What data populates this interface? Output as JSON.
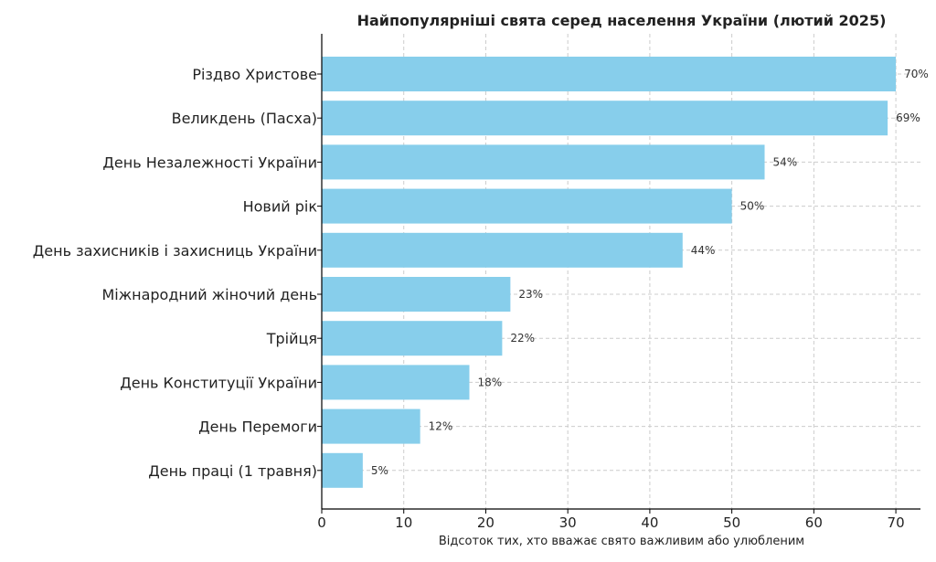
{
  "chart_data": {
    "type": "bar",
    "orientation": "horizontal",
    "title": "Найпопулярніші свята серед населення України (лютий 2025)",
    "xlabel": "Відсоток тих, хто вважає свято важливим або улюбленим",
    "ylabel": "",
    "categories": [
      "Різдво Христове",
      "Великдень (Пасха)",
      "День Незалежності України",
      "Новий рік",
      "День захисників і захисниць України",
      "Міжнародний жіночий день",
      "Трійця",
      "День Конституції України",
      "День Перемоги",
      "День праці (1 травня)"
    ],
    "values": [
      70,
      69,
      54,
      50,
      44,
      23,
      22,
      18,
      12,
      5
    ],
    "value_labels": [
      "70%",
      "69%",
      "54%",
      "50%",
      "44%",
      "23%",
      "22%",
      "18%",
      "12%",
      "5%"
    ],
    "xlim": [
      0,
      73
    ],
    "xticks": [
      0,
      10,
      20,
      30,
      40,
      50,
      60,
      70
    ],
    "xtick_labels": [
      "0",
      "10",
      "20",
      "30",
      "40",
      "50",
      "60",
      "70"
    ],
    "grid": true,
    "bar_color": "#87ceeb"
  }
}
